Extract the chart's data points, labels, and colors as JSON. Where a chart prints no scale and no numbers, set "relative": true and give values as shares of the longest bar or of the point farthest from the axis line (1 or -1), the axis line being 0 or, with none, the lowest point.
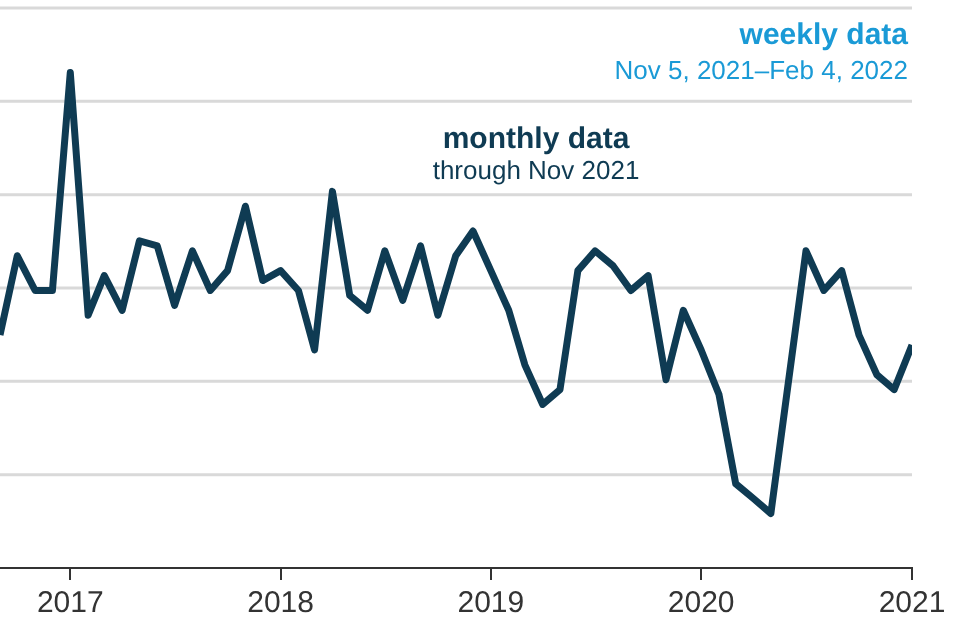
{
  "chart_data": {
    "type": "line",
    "relative": true,
    "x": [
      "2016-09",
      "2016-10",
      "2016-11",
      "2016-12",
      "2017-01",
      "2017-02",
      "2017-03",
      "2017-04",
      "2017-05",
      "2017-06",
      "2017-07",
      "2017-08",
      "2017-09",
      "2017-10",
      "2017-11",
      "2017-12",
      "2018-01",
      "2018-02",
      "2018-03",
      "2018-04",
      "2018-05",
      "2018-06",
      "2018-07",
      "2018-08",
      "2018-09",
      "2018-10",
      "2018-11",
      "2018-12",
      "2019-01",
      "2019-02",
      "2019-03",
      "2019-04",
      "2019-05",
      "2019-06",
      "2019-07",
      "2019-08",
      "2019-09",
      "2019-10",
      "2019-11",
      "2019-12",
      "2020-01",
      "2020-02",
      "2020-03",
      "2020-04",
      "2020-05",
      "2020-06",
      "2020-07",
      "2020-08",
      "2020-09",
      "2020-10",
      "2020-11",
      "2020-12",
      "2021-01"
    ],
    "series": [
      {
        "color": "#0f3b53",
        "values": [
          0.47,
          0.63,
          0.56,
          0.56,
          1.0,
          0.51,
          0.59,
          0.52,
          0.66,
          0.65,
          0.53,
          0.64,
          0.56,
          0.6,
          0.73,
          0.58,
          0.6,
          0.56,
          0.44,
          0.76,
          0.55,
          0.52,
          0.64,
          0.54,
          0.65,
          0.51,
          0.63,
          0.68,
          0.6,
          0.52,
          0.41,
          0.33,
          0.36,
          0.6,
          0.64,
          0.61,
          0.56,
          0.59,
          0.38,
          0.52,
          0.44,
          0.35,
          0.17,
          0.14,
          0.11,
          0.38,
          0.64,
          0.56,
          0.6,
          0.47,
          0.39,
          0.36,
          0.45
        ]
      }
    ],
    "xlim": [
      "2016-09",
      "2021-01"
    ],
    "xticks": [
      {
        "value": "2017",
        "label": "2017"
      },
      {
        "value": "2018",
        "label": "2018"
      },
      {
        "value": "2019",
        "label": "2019"
      },
      {
        "value": "2020",
        "label": "2020"
      },
      {
        "value": "2021",
        "label": "2021"
      }
    ],
    "grid": "y",
    "marker": "none",
    "line_style": "solid",
    "legend": false,
    "annotations": [
      "monthly data",
      "through Nov 2021",
      "weekly data",
      "Nov 5, 2021–Feb 4, 2022"
    ]
  }
}
